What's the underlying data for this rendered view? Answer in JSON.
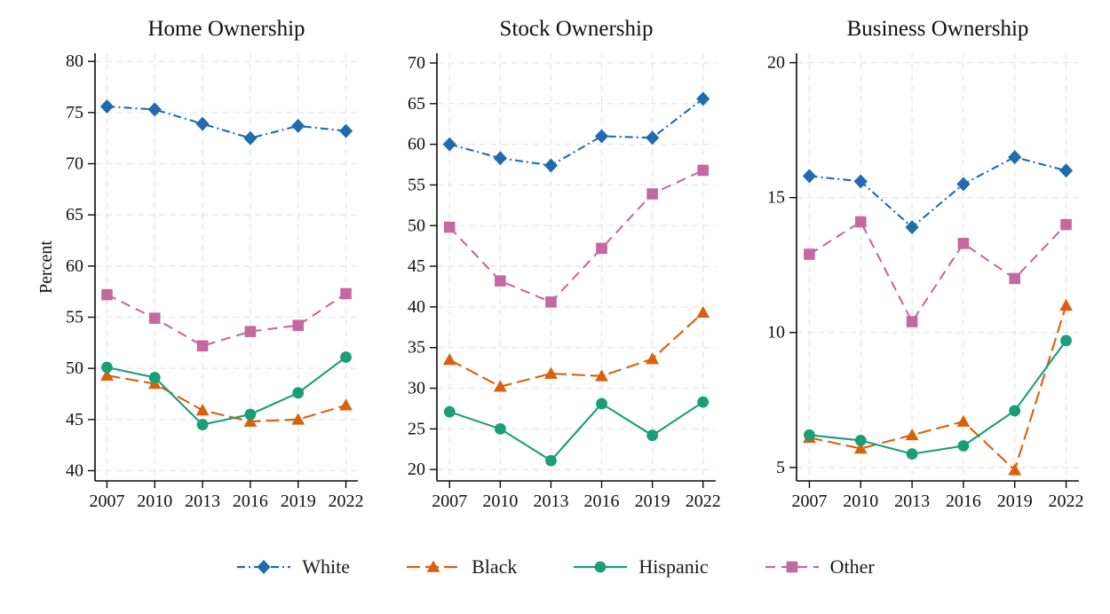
{
  "figure": {
    "ylabel": "Percent",
    "x_tick_years": [
      "2007",
      "2010",
      "2013",
      "2016",
      "2019",
      "2022"
    ],
    "legend": [
      {
        "label": "White"
      },
      {
        "label": "Black"
      },
      {
        "label": "Hispanic"
      },
      {
        "label": "Other"
      }
    ],
    "series_styles": {
      "White": {
        "color": "#1E6BB0",
        "marker": "diamond",
        "dash": "9 4 2 4"
      },
      "Black": {
        "color": "#DB5F0C",
        "marker": "triangle",
        "dash": "15 6"
      },
      "Hispanic": {
        "color": "#199E77",
        "marker": "circle",
        "dash": ""
      },
      "Other": {
        "color": "#C4699F",
        "marker": "square",
        "dash": "11 7"
      }
    },
    "grid_color": "#e7e7e7",
    "axis_color": "#0a0a0a"
  },
  "chart_data": [
    {
      "type": "line",
      "title": "Home Ownership",
      "ylabel": "Percent",
      "x": [
        2007,
        2010,
        2013,
        2016,
        2019,
        2022
      ],
      "xlim": [
        2006.25,
        2022.75
      ],
      "ylim": [
        39,
        80.8
      ],
      "yticks": [
        40,
        45,
        50,
        55,
        60,
        65,
        70,
        75,
        80
      ],
      "grid": true,
      "series": [
        {
          "name": "White",
          "values": [
            75.6,
            75.3,
            73.9,
            72.5,
            73.7,
            73.2
          ]
        },
        {
          "name": "Black",
          "values": [
            49.3,
            48.5,
            45.9,
            44.8,
            45.0,
            46.4
          ]
        },
        {
          "name": "Hispanic",
          "values": [
            50.1,
            49.1,
            44.5,
            45.5,
            47.6,
            51.1
          ]
        },
        {
          "name": "Other",
          "values": [
            57.2,
            54.9,
            52.2,
            53.6,
            54.2,
            57.3
          ]
        }
      ]
    },
    {
      "type": "line",
      "title": "Stock Ownership",
      "ylabel": "",
      "x": [
        2007,
        2010,
        2013,
        2016,
        2019,
        2022
      ],
      "xlim": [
        2006.25,
        2022.75
      ],
      "ylim": [
        18.6,
        71.2
      ],
      "yticks": [
        20,
        25,
        30,
        35,
        40,
        45,
        50,
        55,
        60,
        65,
        70
      ],
      "grid": true,
      "series": [
        {
          "name": "White",
          "values": [
            60.0,
            58.3,
            57.4,
            61.0,
            60.8,
            65.6
          ]
        },
        {
          "name": "Black",
          "values": [
            33.5,
            30.2,
            31.8,
            31.5,
            33.6,
            39.3
          ]
        },
        {
          "name": "Hispanic",
          "values": [
            27.1,
            25.0,
            21.1,
            28.1,
            24.2,
            28.3
          ]
        },
        {
          "name": "Other",
          "values": [
            49.8,
            43.2,
            40.6,
            47.2,
            53.9,
            56.8
          ]
        }
      ]
    },
    {
      "type": "line",
      "title": "Business Ownership",
      "ylabel": "",
      "x": [
        2007,
        2010,
        2013,
        2016,
        2019,
        2022
      ],
      "xlim": [
        2006.25,
        2022.75
      ],
      "ylim": [
        4.5,
        20.35
      ],
      "yticks": [
        5,
        10,
        15,
        20
      ],
      "grid": true,
      "series": [
        {
          "name": "White",
          "values": [
            15.8,
            15.6,
            13.9,
            15.5,
            16.5,
            16.0
          ]
        },
        {
          "name": "Black",
          "values": [
            6.1,
            5.7,
            6.2,
            6.7,
            4.9,
            11.0
          ]
        },
        {
          "name": "Hispanic",
          "values": [
            6.2,
            6.0,
            5.5,
            5.8,
            7.1,
            9.7
          ]
        },
        {
          "name": "Other",
          "values": [
            12.9,
            14.1,
            10.4,
            13.3,
            12.0,
            14.0
          ]
        }
      ]
    }
  ]
}
